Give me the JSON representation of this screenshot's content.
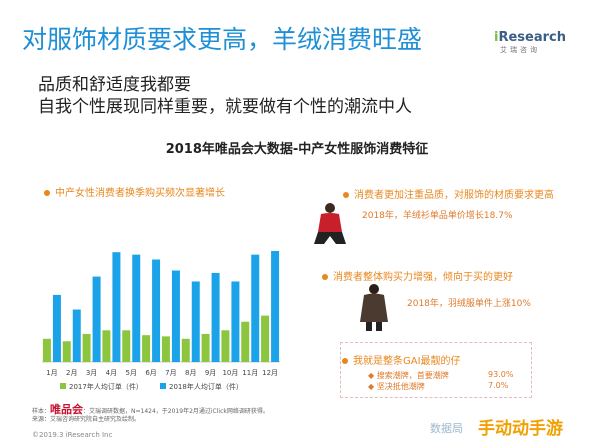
{
  "header": {
    "title": "对服饰材质要求更高，羊绒消费旺盛",
    "logo_main_prefix": "i",
    "logo_main_rest": "Research",
    "logo_sub": "艾瑞咨询",
    "subtitle_line1": "品质和舒适度我都要",
    "subtitle_line2": "自我个性展现同样重要，就要做有个性的潮流中人"
  },
  "chart_data": {
    "type": "bar",
    "title": "2018年唯品会大数据-中产女性服饰消费特征",
    "annotation": "中产女性消费者换季购买频次显著增长",
    "categories": [
      "1月",
      "2月",
      "3月",
      "4月",
      "5月",
      "6月",
      "7月",
      "8月",
      "9月",
      "10月",
      "11月",
      "12月"
    ],
    "series": [
      {
        "name": "2017年人均订单（件）",
        "color": "#8cc63e",
        "values": [
          1.9,
          1.7,
          2.3,
          2.6,
          2.6,
          2.2,
          2.1,
          1.9,
          2.3,
          2.6,
          3.3,
          3.8
        ]
      },
      {
        "name": "2018年人均订单（件）",
        "color": "#1aa3e8",
        "values": [
          5.5,
          4.3,
          7.0,
          9.0,
          8.8,
          8.4,
          7.5,
          6.6,
          7.3,
          6.6,
          8.8,
          9.1
        ]
      }
    ],
    "ylim": [
      0,
      10
    ],
    "legend": "bottom"
  },
  "right_panel": {
    "point1_head": "消费者更加注重品质，对服饰的材质要求更高",
    "point1_note": "2018年，羊绒衫单品单价增长18.7%",
    "point2_head": "消费者整体购买力增强，倾向于买的更好",
    "point2_note": "2018年，羽绒服单件上涨10%",
    "point3_head": "我就是整条GAI最靓的仔",
    "point3_items": [
      {
        "label": "搜索潮牌，首要潮牌",
        "value": "93.0%"
      },
      {
        "label": "坚决抵他潮牌",
        "value": "7.0%"
      }
    ]
  },
  "footer": {
    "source_prefix": "样本：",
    "source_brand": "唯品会",
    "source_line1": "：艾瑞调研数据，N=1424，于2019年2月通过iClick网络调研获得。",
    "source_line2": "来源：艾瑞咨询研究院自主研究及绘制。",
    "copyright": "©2019.3 iResearch Inc",
    "watermark1": "数据局",
    "watermark2": "手动动手游"
  }
}
